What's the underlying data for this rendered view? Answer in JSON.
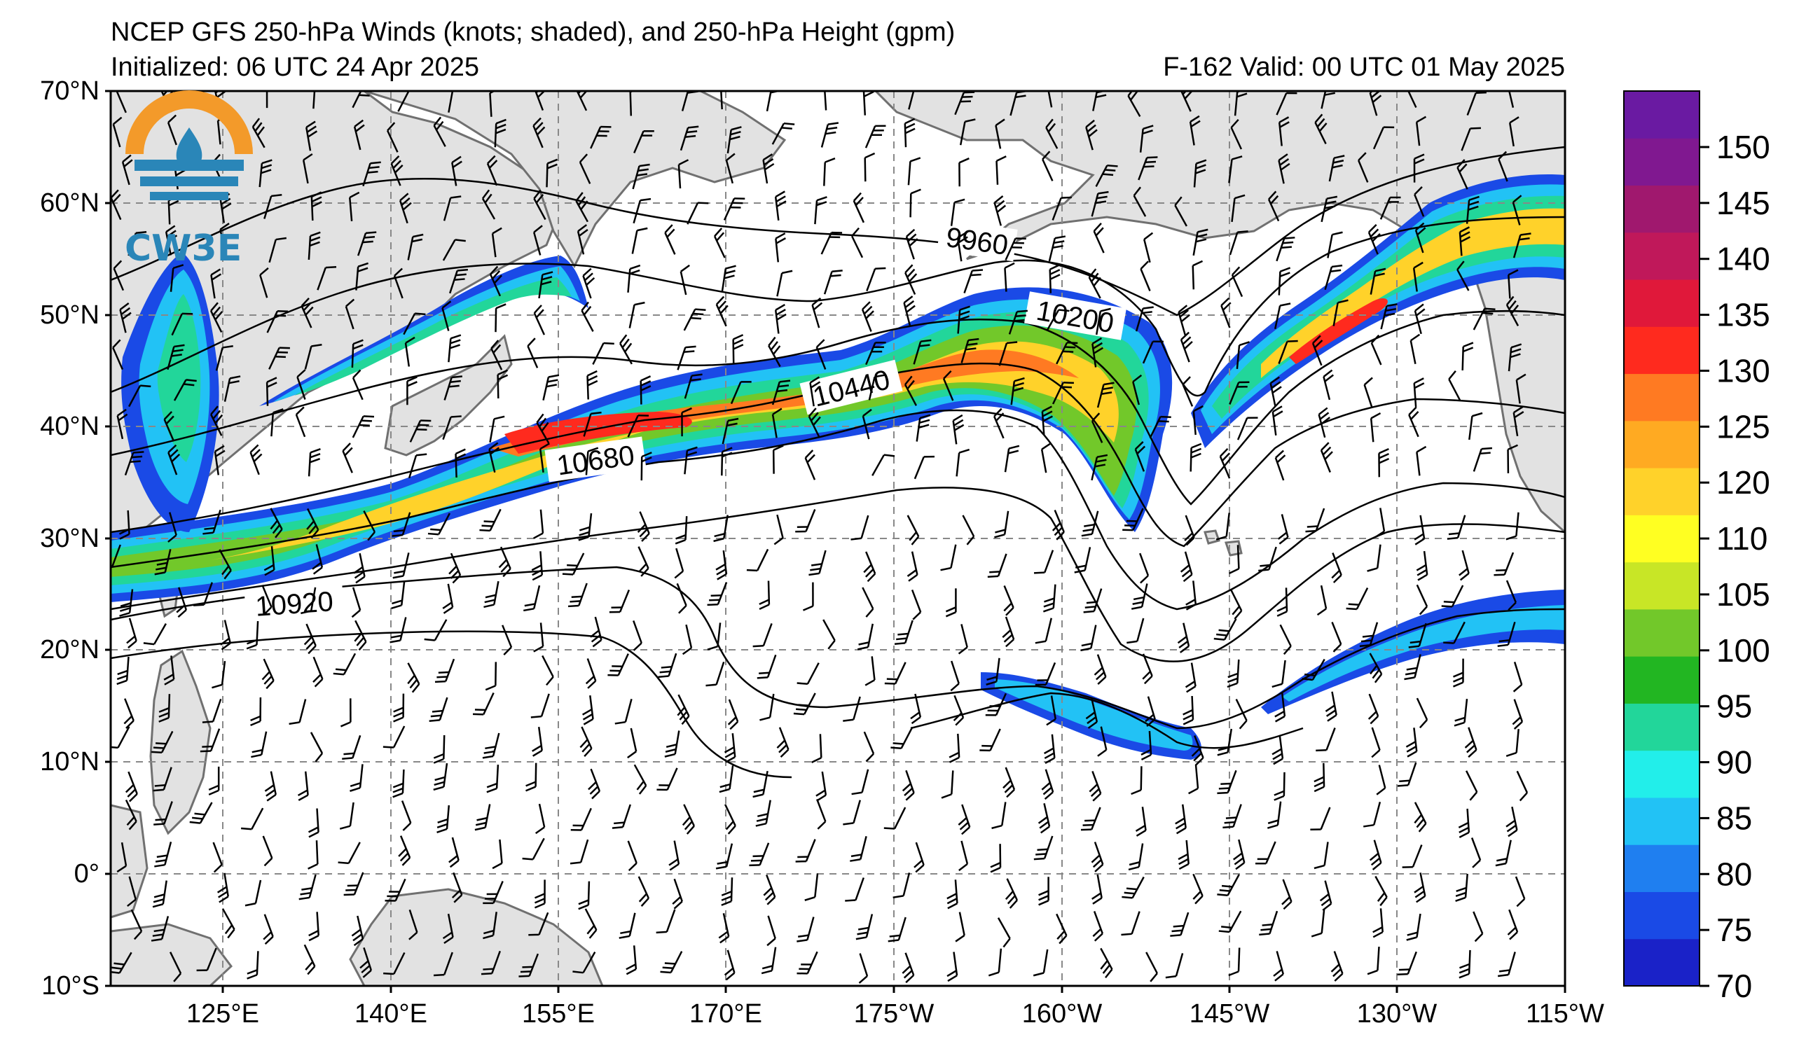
{
  "header": {
    "title": "NCEP GFS 250-hPa Winds (knots; shaded), and 250-hPa Height (gpm)",
    "initialized": "Initialized: 06 UTC 24 Apr 2025",
    "valid": "F-162  Valid: 00 UTC 01 May 2025"
  },
  "logo": {
    "text": "CW3E"
  },
  "axes": {
    "lat_labels": [
      "70°N",
      "60°N",
      "50°N",
      "40°N",
      "30°N",
      "20°N",
      "10°N",
      "0°",
      "10°S"
    ],
    "lon_labels": [
      "125°E",
      "140°E",
      "155°E",
      "170°E",
      "175°W",
      "160°W",
      "145°W",
      "130°W",
      "115°W"
    ]
  },
  "colorbar": {
    "labels": [
      "70",
      "75",
      "80",
      "85",
      "90",
      "95",
      "100",
      "105",
      "110",
      "120",
      "125",
      "130",
      "135",
      "140",
      "145",
      "150"
    ],
    "colors": [
      "#1a22c8",
      "#1a4ae6",
      "#1f7ff0",
      "#22c2f5",
      "#22eeea",
      "#22d69a",
      "#22b622",
      "#72c82a",
      "#c8e626",
      "#ffff22",
      "#ffd22a",
      "#ffaa22",
      "#ff7a22",
      "#ff2a1e",
      "#e0183a",
      "#c0185a",
      "#a0186e",
      "#801890",
      "#6a1aa2"
    ]
  },
  "contours": {
    "labels": [
      "9960",
      "10200",
      "10440",
      "10680",
      "10920"
    ],
    "color": "#000000"
  },
  "map": {
    "land_color": "#e2e2e2",
    "coast_color": "#707070",
    "grid_color": "#888888"
  }
}
